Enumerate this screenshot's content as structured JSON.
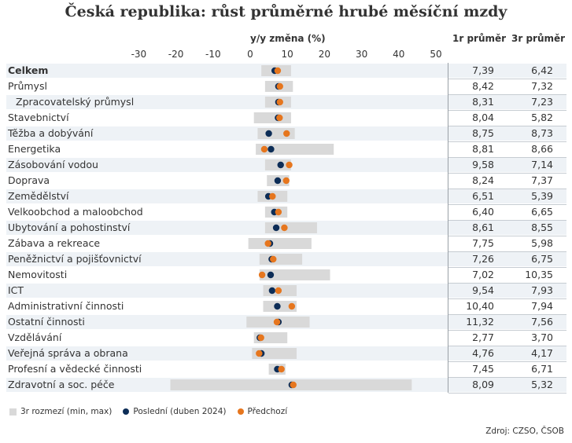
{
  "title": "Česká republika: růst průměrné hrubé měsíční mzdy",
  "columns": {
    "avg1": "1r průměr",
    "avg3": "3r průměr"
  },
  "chart_data": {
    "type": "dot-range",
    "xlabel": "y/y změna (%)",
    "xlim": [
      -30,
      50
    ],
    "xticks": [
      "-30",
      "-20",
      "-10",
      "0",
      "10",
      "20",
      "30",
      "40",
      "50"
    ],
    "legend": [
      "3r rozmezí (min, max)",
      "Poslední (duben 2024)",
      "Předchozí"
    ],
    "colors": {
      "range": "#d9d9d9",
      "latest": "#0d2d57",
      "previous": "#e6761e"
    },
    "rows": [
      {
        "label": "Celkem",
        "min": 3.0,
        "max": 11.0,
        "latest": 6.6,
        "previous": 7.4,
        "avg1": "7,39",
        "avg3": "6,42",
        "bold": true
      },
      {
        "label": "Průmysl",
        "min": 4.0,
        "max": 11.5,
        "latest": 7.6,
        "previous": 8.0,
        "avg1": "8,42",
        "avg3": "7,32"
      },
      {
        "label": "Zpracovatelský průmysl",
        "min": 4.0,
        "max": 11.0,
        "latest": 7.6,
        "previous": 8.0,
        "avg1": "8,31",
        "avg3": "7,23",
        "indent": true
      },
      {
        "label": "Stavebnictví",
        "min": 1.0,
        "max": 11.0,
        "latest": 7.5,
        "previous": 7.9,
        "avg1": "8,04",
        "avg3": "5,82"
      },
      {
        "label": "Těžba a dobývání",
        "min": 2.0,
        "max": 12.0,
        "latest": 5.0,
        "previous": 9.8,
        "avg1": "8,75",
        "avg3": "8,73"
      },
      {
        "label": "Energetika",
        "min": 1.5,
        "max": 22.5,
        "latest": 5.6,
        "previous": 3.8,
        "avg1": "8,81",
        "avg3": "8,66"
      },
      {
        "label": "Zásobování vodou",
        "min": 4.0,
        "max": 11.0,
        "latest": 8.2,
        "previous": 10.5,
        "avg1": "9,58",
        "avg3": "7,14"
      },
      {
        "label": "Doprava",
        "min": 4.5,
        "max": 10.5,
        "latest": 7.4,
        "previous": 9.7,
        "avg1": "8,24",
        "avg3": "7,37"
      },
      {
        "label": "Zemědělství",
        "min": 2.0,
        "max": 10.0,
        "latest": 4.9,
        "previous": 6.0,
        "avg1": "6,51",
        "avg3": "5,39"
      },
      {
        "label": "Velkoobchod a maloobchod",
        "min": 4.0,
        "max": 10.0,
        "latest": 6.5,
        "previous": 7.6,
        "avg1": "6,40",
        "avg3": "6,65"
      },
      {
        "label": "Ubytování a pohostinství",
        "min": 4.0,
        "max": 18.0,
        "latest": 7.0,
        "previous": 9.2,
        "avg1": "8,61",
        "avg3": "8,55"
      },
      {
        "label": "Zábava a rekreace",
        "min": -0.5,
        "max": 16.5,
        "latest": 5.3,
        "previous": 4.8,
        "avg1": "7,75",
        "avg3": "5,98"
      },
      {
        "label": "Peněžnictví a pojišťovnictví",
        "min": 2.5,
        "max": 14.0,
        "latest": 5.8,
        "previous": 6.2,
        "avg1": "7,26",
        "avg3": "6,75"
      },
      {
        "label": "Nemovitosti",
        "min": 2.5,
        "max": 21.5,
        "latest": 5.5,
        "previous": 3.2,
        "avg1": "7,02",
        "avg3": "10,35"
      },
      {
        "label": "ICT",
        "min": 3.5,
        "max": 12.5,
        "latest": 5.9,
        "previous": 7.6,
        "avg1": "9,54",
        "avg3": "7,93"
      },
      {
        "label": "Administrativní činnosti",
        "min": 3.5,
        "max": 12.5,
        "latest": 7.3,
        "previous": 11.2,
        "avg1": "10,40",
        "avg3": "7,94"
      },
      {
        "label": "Ostatní činnosti",
        "min": -1.0,
        "max": 16.0,
        "latest": 7.6,
        "previous": 7.2,
        "avg1": "11,32",
        "avg3": "7,56"
      },
      {
        "label": "Vzdělávání",
        "min": 1.0,
        "max": 10.0,
        "latest": 2.6,
        "previous": 2.9,
        "avg1": "2,77",
        "avg3": "3,70"
      },
      {
        "label": "Veřejná správa a obrana",
        "min": 0.5,
        "max": 12.5,
        "latest": 3.0,
        "previous": 2.4,
        "avg1": "4,76",
        "avg3": "4,17"
      },
      {
        "label": "Profesní a vědecké činnosti",
        "min": 5.0,
        "max": 9.5,
        "latest": 7.3,
        "previous": 8.4,
        "avg1": "7,45",
        "avg3": "6,71"
      },
      {
        "label": "Zdravotní a soc. péče",
        "min": -21.5,
        "max": 43.5,
        "latest": 11.2,
        "previous": 11.6,
        "avg1": "8,09",
        "avg3": "5,32"
      }
    ]
  },
  "source": "Zdroj: CZSO, ČSOB"
}
